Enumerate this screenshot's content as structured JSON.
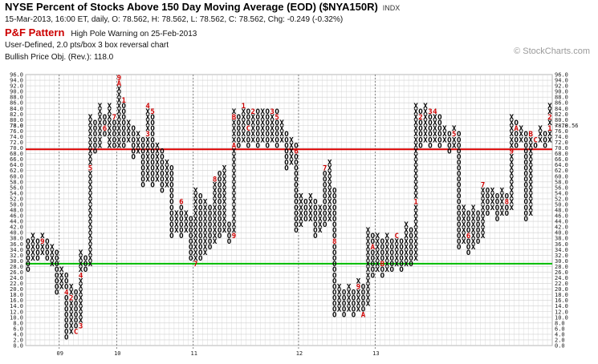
{
  "header": {
    "title": "NYSE Percent of Stocks Above 150 Day Moving Average (EOD) ($NYA150R)",
    "symbol_tag": "INDX",
    "quote": "15-Mar-2013, 16:00 ET, daily, O: 78.562, H: 78.562, L: 78.562, C: 78.562, Chg: -0.249 (-0.32%)",
    "pf_label": "P&F Pattern",
    "pf_signal": "High Pole Warning on 25-Feb-2013",
    "method": "User-Defined, 2.0 pts/box 3 box reversal chart",
    "objective": "Bullish Price Obj. (Rev.): 118.0"
  },
  "watermark": "© StockCharts.com",
  "colors": {
    "x_mark": "#000000",
    "o_mark": "#000000",
    "month_marker": "#cc0000",
    "upper_line": "#dd0000",
    "lower_line": "#00bb00",
    "current_price": "#cc0000",
    "grid": "#d0d0d0"
  },
  "chart_data": {
    "type": "point-and-figure",
    "box_size": 2,
    "reversal": 3,
    "ylim": [
      0,
      96
    ],
    "y_ticks": [
      "0.0",
      "2.0",
      "4.0",
      "6.0",
      "8.0",
      "10.0",
      "12.0",
      "14.0",
      "16.0",
      "18.0",
      "20.0",
      "22.0",
      "24.0",
      "26.0",
      "28.0",
      "30.0",
      "32.0",
      "34.0",
      "36.0",
      "38.0",
      "40.0",
      "42.0",
      "44.0",
      "46.0",
      "48.0",
      "50.0",
      "52.0",
      "54.0",
      "56.0",
      "58.0",
      "60.0",
      "62.0",
      "64.0",
      "66.0",
      "68.0",
      "70.0",
      "72.0",
      "74.0",
      "76.0",
      "78.0",
      "80.0",
      "82.0",
      "84.0",
      "86.0",
      "88.0",
      "90.0",
      "92.0",
      "94.0",
      "96.0"
    ],
    "year_labels": [
      {
        "label": "09",
        "column": 7
      },
      {
        "label": "10",
        "column": 19
      },
      {
        "label": "11",
        "column": 35
      },
      {
        "label": "12",
        "column": 57
      },
      {
        "label": "13",
        "column": 73
      }
    ],
    "horizontal_lines": [
      {
        "value": 69.5,
        "color": "#dd0000"
      },
      {
        "value": 29.0,
        "color": "#00bb00"
      }
    ],
    "current_price": {
      "value": 78.0,
      "label": "78.0",
      "right_label": "<-78.56"
    },
    "columns": [
      {
        "t": "O",
        "lo": 26,
        "hi": 36
      },
      {
        "t": "X",
        "lo": 30,
        "hi": 38
      },
      {
        "t": "O",
        "lo": 30,
        "hi": 36
      },
      {
        "t": "X",
        "lo": 32,
        "hi": 38,
        "m": {
          "36": "9"
        }
      },
      {
        "t": "O",
        "lo": 30,
        "hi": 36
      },
      {
        "t": "X",
        "lo": 28,
        "hi": 34
      },
      {
        "t": "O",
        "lo": 18,
        "hi": 32
      },
      {
        "t": "X",
        "lo": 20,
        "hi": 26
      },
      {
        "t": "O",
        "lo": 2,
        "hi": 24,
        "m": {
          "18": "4"
        }
      },
      {
        "t": "X",
        "lo": 4,
        "hi": 20,
        "m": {
          "16": "2"
        }
      },
      {
        "t": "O",
        "lo": 4,
        "hi": 18,
        "m": {
          "4": "C"
        }
      },
      {
        "t": "X",
        "lo": 6,
        "hi": 32,
        "m": {
          "6": "3",
          "24": "4"
        }
      },
      {
        "t": "O",
        "lo": 26,
        "hi": 30
      },
      {
        "t": "X",
        "lo": 28,
        "hi": 80,
        "m": {
          "62": "5"
        }
      },
      {
        "t": "O",
        "lo": 68,
        "hi": 78
      },
      {
        "t": "X",
        "lo": 70,
        "hi": 84
      },
      {
        "t": "O",
        "lo": 74,
        "hi": 80,
        "m": {
          "76": "6"
        }
      },
      {
        "t": "X",
        "lo": 70,
        "hi": 84
      },
      {
        "t": "O",
        "lo": 70,
        "hi": 80,
        "m": {
          "80": "7"
        }
      },
      {
        "t": "X",
        "lo": 70,
        "hi": 94,
        "m": {
          "94": "9",
          "92": "A"
        }
      },
      {
        "t": "O",
        "lo": 70,
        "hi": 86,
        "m": {
          "86": "1"
        }
      },
      {
        "t": "X",
        "lo": 72,
        "hi": 78
      },
      {
        "t": "O",
        "lo": 66,
        "hi": 76
      },
      {
        "t": "X",
        "lo": 68,
        "hi": 74
      },
      {
        "t": "O",
        "lo": 56,
        "hi": 72
      },
      {
        "t": "X",
        "lo": 58,
        "hi": 84,
        "m": {
          "84": "4",
          "74": "3"
        }
      },
      {
        "t": "O",
        "lo": 56,
        "hi": 82,
        "m": {
          "82": "5"
        }
      },
      {
        "t": "X",
        "lo": 58,
        "hi": 70
      },
      {
        "t": "O",
        "lo": 54,
        "hi": 68
      },
      {
        "t": "X",
        "lo": 56,
        "hi": 64
      },
      {
        "t": "O",
        "lo": 38,
        "hi": 62
      },
      {
        "t": "X",
        "lo": 40,
        "hi": 46
      },
      {
        "t": "O",
        "lo": 38,
        "hi": 50,
        "m": {
          "50": "6"
        }
      },
      {
        "t": "X",
        "lo": 40,
        "hi": 46
      },
      {
        "t": "O",
        "lo": 30,
        "hi": 44
      },
      {
        "t": "X",
        "lo": 28,
        "hi": 54,
        "m": {
          "28": "7"
        }
      },
      {
        "t": "O",
        "lo": 30,
        "hi": 52
      },
      {
        "t": "X",
        "lo": 32,
        "hi": 50
      },
      {
        "t": "O",
        "lo": 34,
        "hi": 48
      },
      {
        "t": "X",
        "lo": 36,
        "hi": 58,
        "m": {
          "58": "8"
        }
      },
      {
        "t": "O",
        "lo": 38,
        "hi": 60
      },
      {
        "t": "X",
        "lo": 40,
        "hi": 62
      },
      {
        "t": "O",
        "lo": 36,
        "hi": 42
      },
      {
        "t": "X",
        "lo": 38,
        "hi": 82,
        "m": {
          "38": "9",
          "70": "A",
          "80": "B"
        }
      },
      {
        "t": "O",
        "lo": 70,
        "hi": 80
      },
      {
        "t": "X",
        "lo": 72,
        "hi": 84,
        "m": {
          "84": "1"
        }
      },
      {
        "t": "O",
        "lo": 70,
        "hi": 82,
        "m": {
          "76": "C"
        }
      },
      {
        "t": "X",
        "lo": 72,
        "hi": 82,
        "m": {
          "82": "2"
        }
      },
      {
        "t": "O",
        "lo": 70,
        "hi": 82
      },
      {
        "t": "X",
        "lo": 72,
        "hi": 82
      },
      {
        "t": "O",
        "lo": 70,
        "hi": 82
      },
      {
        "t": "X",
        "lo": 72,
        "hi": 82,
        "m": {
          "82": "3"
        }
      },
      {
        "t": "O",
        "lo": 70,
        "hi": 82,
        "m": {
          "80": "5"
        }
      },
      {
        "t": "X",
        "lo": 72,
        "hi": 78
      },
      {
        "t": "O",
        "lo": 62,
        "hi": 74
      },
      {
        "t": "X",
        "lo": 64,
        "hi": 72
      },
      {
        "t": "O",
        "lo": 40,
        "hi": 70,
        "m": {
          "68": "6"
        }
      },
      {
        "t": "X",
        "lo": 42,
        "hi": 52
      },
      {
        "t": "O",
        "lo": 44,
        "hi": 50
      },
      {
        "t": "X",
        "lo": 44,
        "hi": 52
      },
      {
        "t": "O",
        "lo": 38,
        "hi": 50
      },
      {
        "t": "X",
        "lo": 40,
        "hi": 48
      },
      {
        "t": "O",
        "lo": 42,
        "hi": 62,
        "m": {
          "62": "7"
        }
      },
      {
        "t": "X",
        "lo": 44,
        "hi": 64
      },
      {
        "t": "O",
        "lo": 10,
        "hi": 54,
        "m": {
          "36": "8"
        }
      },
      {
        "t": "X",
        "lo": 12,
        "hi": 20
      },
      {
        "t": "O",
        "lo": 10,
        "hi": 18
      },
      {
        "t": "X",
        "lo": 12,
        "hi": 20
      },
      {
        "t": "O",
        "lo": 10,
        "hi": 18
      },
      {
        "t": "X",
        "lo": 12,
        "hi": 22,
        "m": {
          "20": "9"
        }
      },
      {
        "t": "O",
        "lo": 10,
        "hi": 20,
        "m": {
          "10": "A"
        }
      },
      {
        "t": "X",
        "lo": 14,
        "hi": 40
      },
      {
        "t": "O",
        "lo": 24,
        "hi": 38,
        "m": {
          "34": "A"
        }
      },
      {
        "t": "X",
        "lo": 26,
        "hi": 38
      },
      {
        "t": "O",
        "lo": 24,
        "hi": 36,
        "m": {
          "28": "B"
        }
      },
      {
        "t": "X",
        "lo": 26,
        "hi": 38
      },
      {
        "t": "O",
        "lo": 26,
        "hi": 36
      },
      {
        "t": "X",
        "lo": 28,
        "hi": 38,
        "m": {
          "38": "C"
        }
      },
      {
        "t": "O",
        "lo": 26,
        "hi": 36
      },
      {
        "t": "X",
        "lo": 28,
        "hi": 42
      },
      {
        "t": "O",
        "lo": 28,
        "hi": 40
      },
      {
        "t": "X",
        "lo": 30,
        "hi": 84,
        "m": {
          "50": "1"
        }
      },
      {
        "t": "O",
        "lo": 70,
        "hi": 82,
        "m": {
          "80": "2"
        }
      },
      {
        "t": "X",
        "lo": 72,
        "hi": 84
      },
      {
        "t": "O",
        "lo": 70,
        "hi": 82,
        "m": {
          "82": "3"
        }
      },
      {
        "t": "X",
        "lo": 72,
        "hi": 82,
        "m": {
          "82": "4"
        }
      },
      {
        "t": "O",
        "lo": 70,
        "hi": 80
      },
      {
        "t": "X",
        "lo": 72,
        "hi": 76
      },
      {
        "t": "O",
        "lo": 68,
        "hi": 74
      },
      {
        "t": "X",
        "lo": 70,
        "hi": 76,
        "m": {
          "74": "5"
        }
      },
      {
        "t": "O",
        "lo": 34,
        "hi": 74
      },
      {
        "t": "X",
        "lo": 36,
        "hi": 48
      },
      {
        "t": "O",
        "lo": 32,
        "hi": 46,
        "m": {
          "38": "6"
        }
      },
      {
        "t": "X",
        "lo": 34,
        "hi": 48
      },
      {
        "t": "O",
        "lo": 36,
        "hi": 46
      },
      {
        "t": "X",
        "lo": 38,
        "hi": 56,
        "m": {
          "56": "7"
        }
      },
      {
        "t": "O",
        "lo": 46,
        "hi": 54
      },
      {
        "t": "X",
        "lo": 48,
        "hi": 54
      },
      {
        "t": "O",
        "lo": 44,
        "hi": 52
      },
      {
        "t": "X",
        "lo": 46,
        "hi": 54
      },
      {
        "t": "O",
        "lo": 46,
        "hi": 52,
        "m": {
          "50": "8"
        }
      },
      {
        "t": "X",
        "lo": 48,
        "hi": 80,
        "m": {
          "68": "9"
        }
      },
      {
        "t": "O",
        "lo": 70,
        "hi": 78,
        "m": {
          "76": "A"
        }
      },
      {
        "t": "X",
        "lo": 72,
        "hi": 76
      },
      {
        "t": "O",
        "lo": 44,
        "hi": 74
      },
      {
        "t": "X",
        "lo": 46,
        "hi": 74,
        "m": {
          "74": "B"
        }
      },
      {
        "t": "O",
        "lo": 70,
        "hi": 72,
        "m": {
          "72": "C"
        }
      },
      {
        "t": "X",
        "lo": 72,
        "hi": 76
      },
      {
        "t": "O",
        "lo": 70,
        "hi": 74
      },
      {
        "t": "X",
        "lo": 72,
        "hi": 84,
        "m": {
          "76": "1",
          "80": "2"
        }
      }
    ]
  }
}
